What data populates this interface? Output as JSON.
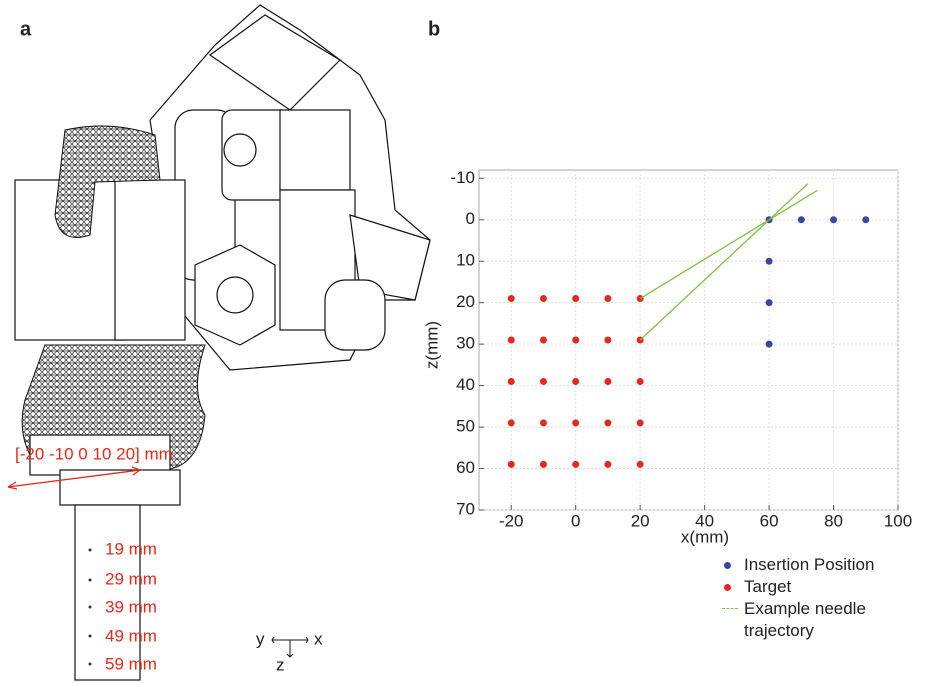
{
  "panel_a": {
    "label": "a",
    "x_offsets_label": "[-20 -10 0 10 20] mm",
    "depth_labels": [
      "19 mm",
      "29 mm",
      "39 mm",
      "49 mm",
      "59 mm"
    ],
    "axis_triad": {
      "y": "y",
      "x": "x",
      "z": "z"
    }
  },
  "chart_data": {
    "type": "scatter",
    "panel_label": "b",
    "x_label": "x(mm)",
    "y_label": "z(mm)",
    "xlim": [
      -30,
      100
    ],
    "xticks": [
      -20,
      0,
      20,
      40,
      60,
      80,
      100
    ],
    "ylim": [
      -12,
      70
    ],
    "yticks": [
      -10,
      0,
      10,
      20,
      30,
      40,
      50,
      60,
      70
    ],
    "y_inverted": true,
    "grid": true,
    "series": [
      {
        "name": "Insertion Position",
        "color": "#3b46a3",
        "mode": "markers",
        "x": [
          60,
          70,
          80,
          90,
          60,
          60,
          60
        ],
        "values": [
          0,
          0,
          0,
          0,
          10,
          20,
          30
        ]
      },
      {
        "name": "Target",
        "color": "#e3281c",
        "mode": "markers",
        "x": [
          -20,
          -10,
          0,
          10,
          20,
          -20,
          -10,
          0,
          10,
          20,
          -20,
          -10,
          0,
          10,
          20,
          -20,
          -10,
          0,
          10,
          20,
          -20,
          -10,
          0,
          10,
          20
        ],
        "values": [
          19,
          19,
          19,
          19,
          19,
          29,
          29,
          29,
          29,
          29,
          39,
          39,
          39,
          39,
          39,
          49,
          49,
          49,
          49,
          49,
          59,
          59,
          59,
          59,
          59
        ]
      },
      {
        "name": "Example needle trajectory",
        "color": "#7dc242",
        "mode": "lines",
        "x": [
          20,
          72,
          null,
          20,
          75
        ],
        "values": [
          29,
          -8.7,
          null,
          19,
          -7.1
        ]
      }
    ]
  }
}
